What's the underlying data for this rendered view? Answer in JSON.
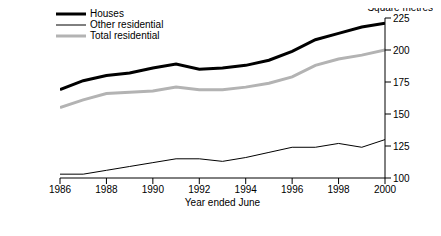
{
  "chart_data": {
    "type": "line",
    "y_label": "Square metres",
    "x_label": "Year ended June",
    "x": [
      1986,
      1987,
      1988,
      1989,
      1990,
      1991,
      1992,
      1993,
      1994,
      1995,
      1996,
      1997,
      1998,
      1999,
      2000
    ],
    "series": [
      {
        "name": "Houses",
        "color": "#000000",
        "values": [
          169,
          176,
          180,
          182,
          186,
          189,
          185,
          186,
          188,
          192,
          199,
          208,
          213,
          218,
          221
        ]
      },
      {
        "name": "Other residential",
        "color": "#000000",
        "values": [
          103,
          103,
          106,
          109,
          112,
          115,
          115,
          113,
          116,
          120,
          124,
          124,
          127,
          124,
          130
        ]
      },
      {
        "name": "Total residential",
        "color": "#b3b3b3",
        "values": [
          155,
          161,
          166,
          167,
          168,
          171,
          169,
          169,
          171,
          174,
          179,
          188,
          193,
          196,
          200
        ]
      }
    ],
    "xlim": [
      1986,
      2000
    ],
    "xticks": [
      1986,
      1988,
      1990,
      1992,
      1994,
      1996,
      1998,
      2000
    ],
    "ylim": [
      100,
      225
    ],
    "yticks": [
      100,
      125,
      150,
      175,
      200,
      225
    ],
    "grid": false,
    "legend": "upper left"
  }
}
